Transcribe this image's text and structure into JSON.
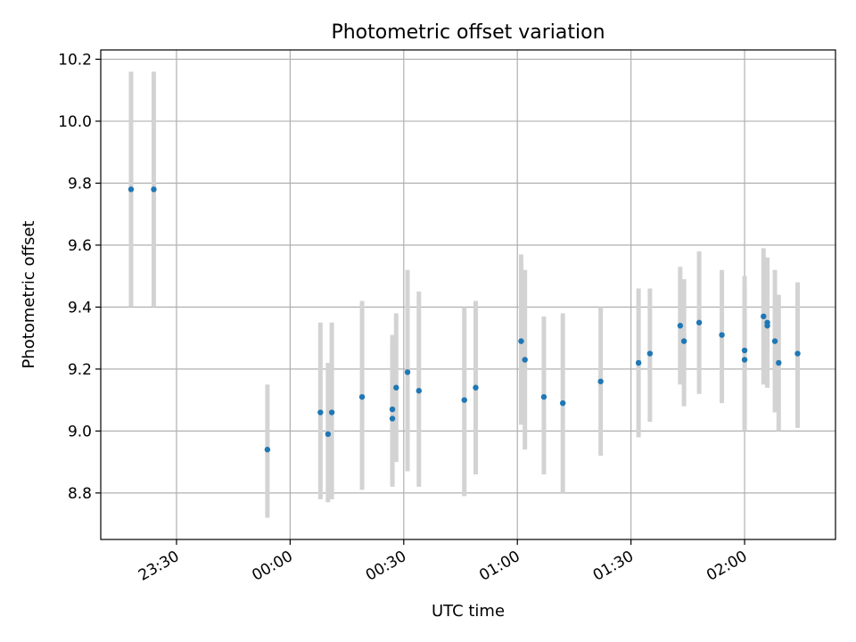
{
  "chart_data": {
    "type": "scatter",
    "title": "Photometric offset variation",
    "xlabel": "UTC time",
    "ylabel": "Photometric offset",
    "x_unit": "UTC time (HH:MM)",
    "xlim": [
      "23:10",
      "02:24"
    ],
    "ylim": [
      8.65,
      10.23
    ],
    "x_ticks": [
      "23:30",
      "00:00",
      "00:30",
      "01:00",
      "01:30",
      "02:00"
    ],
    "y_ticks": [
      8.8,
      9.0,
      9.2,
      9.4,
      9.6,
      9.8,
      10.0,
      10.2
    ],
    "y_tick_labels": [
      "8.8",
      "9.0",
      "9.2",
      "9.4",
      "9.6",
      "9.8",
      "10.0",
      "10.2"
    ],
    "x_tick_label_rotation_deg": 30,
    "grid": true,
    "legend": "none",
    "colors": {
      "points": "#1f77b4",
      "error_bars": "#d3d3d3",
      "grid": "#b0b0b0"
    },
    "points": [
      {
        "x": "23:18",
        "y": 9.78,
        "y_low": 9.4,
        "y_high": 10.16
      },
      {
        "x": "23:24",
        "y": 9.78,
        "y_low": 9.4,
        "y_high": 10.16
      },
      {
        "x": "23:54",
        "y": 8.94,
        "y_low": 8.72,
        "y_high": 9.15
      },
      {
        "x": "00:08",
        "y": 9.06,
        "y_low": 8.78,
        "y_high": 9.35
      },
      {
        "x": "00:10",
        "y": 8.99,
        "y_low": 8.77,
        "y_high": 9.22
      },
      {
        "x": "00:11",
        "y": 9.06,
        "y_low": 8.78,
        "y_high": 9.35
      },
      {
        "x": "00:19",
        "y": 9.11,
        "y_low": 8.81,
        "y_high": 9.42
      },
      {
        "x": "00:27",
        "y": 9.04,
        "y_low": 8.82,
        "y_high": 9.28
      },
      {
        "x": "00:27",
        "y": 9.07,
        "y_low": 8.83,
        "y_high": 9.31
      },
      {
        "x": "00:28",
        "y": 9.14,
        "y_low": 8.9,
        "y_high": 9.38
      },
      {
        "x": "00:31",
        "y": 9.19,
        "y_low": 8.87,
        "y_high": 9.52
      },
      {
        "x": "00:34",
        "y": 9.13,
        "y_low": 8.82,
        "y_high": 9.45
      },
      {
        "x": "00:46",
        "y": 9.1,
        "y_low": 8.79,
        "y_high": 9.4
      },
      {
        "x": "00:49",
        "y": 9.14,
        "y_low": 8.86,
        "y_high": 9.42
      },
      {
        "x": "01:01",
        "y": 9.29,
        "y_low": 9.02,
        "y_high": 9.57
      },
      {
        "x": "01:02",
        "y": 9.23,
        "y_low": 8.94,
        "y_high": 9.52
      },
      {
        "x": "01:07",
        "y": 9.11,
        "y_low": 8.86,
        "y_high": 9.37
      },
      {
        "x": "01:12",
        "y": 9.09,
        "y_low": 8.8,
        "y_high": 9.38
      },
      {
        "x": "01:22",
        "y": 9.16,
        "y_low": 8.92,
        "y_high": 9.4
      },
      {
        "x": "01:32",
        "y": 9.22,
        "y_low": 8.98,
        "y_high": 9.46
      },
      {
        "x": "01:35",
        "y": 9.25,
        "y_low": 9.03,
        "y_high": 9.46
      },
      {
        "x": "01:43",
        "y": 9.34,
        "y_low": 9.15,
        "y_high": 9.53
      },
      {
        "x": "01:44",
        "y": 9.29,
        "y_low": 9.08,
        "y_high": 9.49
      },
      {
        "x": "01:48",
        "y": 9.35,
        "y_low": 9.12,
        "y_high": 9.58
      },
      {
        "x": "01:54",
        "y": 9.31,
        "y_low": 9.09,
        "y_high": 9.52
      },
      {
        "x": "02:00",
        "y": 9.26,
        "y_low": 9.02,
        "y_high": 9.5
      },
      {
        "x": "02:00",
        "y": 9.23,
        "y_low": 9.0,
        "y_high": 9.47
      },
      {
        "x": "02:05",
        "y": 9.37,
        "y_low": 9.15,
        "y_high": 9.59
      },
      {
        "x": "02:06",
        "y": 9.35,
        "y_low": 9.14,
        "y_high": 9.56
      },
      {
        "x": "02:06",
        "y": 9.34,
        "y_low": 9.14,
        "y_high": 9.54
      },
      {
        "x": "02:08",
        "y": 9.29,
        "y_low": 9.06,
        "y_high": 9.52
      },
      {
        "x": "02:09",
        "y": 9.22,
        "y_low": 9.0,
        "y_high": 9.44
      },
      {
        "x": "02:14",
        "y": 9.25,
        "y_low": 9.01,
        "y_high": 9.48
      }
    ]
  }
}
